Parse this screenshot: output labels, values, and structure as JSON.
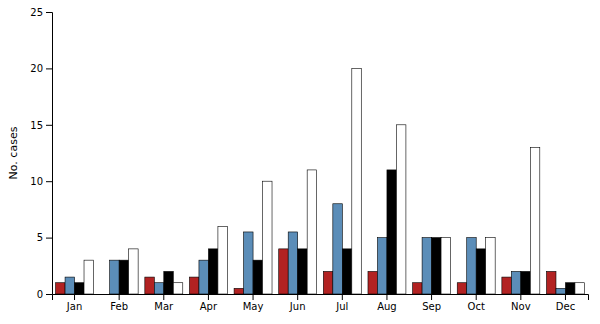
{
  "chart_data": {
    "type": "bar",
    "categories": [
      "Jan",
      "Feb",
      "Mar",
      "Apr",
      "May",
      "Jun",
      "Jul",
      "Aug",
      "Sep",
      "Oct",
      "Nov",
      "Dec"
    ],
    "series": [
      {
        "color": "#b22222",
        "values": [
          1.0,
          0.0,
          1.5,
          1.5,
          0.5,
          4.0,
          2.0,
          2.0,
          1.0,
          1.0,
          1.5,
          2.0
        ]
      },
      {
        "color": "#5b8db8",
        "values": [
          1.5,
          3.0,
          1.0,
          3.0,
          5.5,
          5.5,
          8.0,
          5.0,
          5.0,
          5.0,
          2.0,
          0.5
        ]
      },
      {
        "color": "#000000",
        "values": [
          1.0,
          3.0,
          2.0,
          4.0,
          3.0,
          4.0,
          4.0,
          11.0,
          5.0,
          4.0,
          2.0,
          1.0
        ]
      },
      {
        "color": "#ffffff",
        "values": [
          3.0,
          4.0,
          1.0,
          6.0,
          10.0,
          11.0,
          20.0,
          15.0,
          5.0,
          5.0,
          13.0,
          1.0
        ]
      }
    ],
    "ylabel": "No. cases",
    "ylim": [
      0,
      25
    ],
    "yticks": [
      0,
      5,
      10,
      15,
      20,
      25
    ],
    "grid": false
  }
}
